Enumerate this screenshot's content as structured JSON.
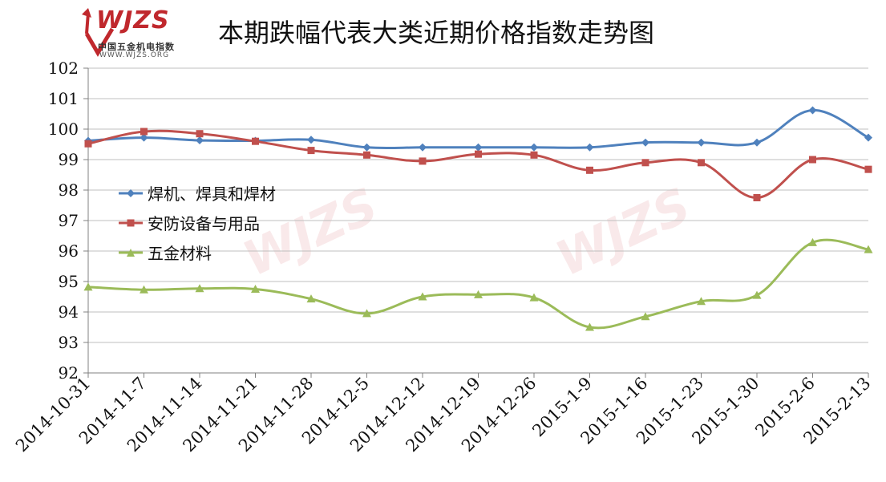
{
  "logo": {
    "name": "WJZS",
    "sub_cn": "中国五金机电指数",
    "sub_url": "WWW.WJZS.ORG"
  },
  "title": "本期跌幅代表大类近期价格指数走势图",
  "chart_data": {
    "type": "line",
    "title": "本期跌幅代表大类近期价格指数走势图",
    "xlabel": "",
    "ylabel": "",
    "ylim": [
      92,
      102
    ],
    "yticks": [
      92,
      93,
      94,
      95,
      96,
      97,
      98,
      99,
      100,
      101,
      102
    ],
    "grid": true,
    "legend_position": "left",
    "categories": [
      "2014-10-31",
      "2014-11-7",
      "2014-11-14",
      "2014-11-21",
      "2014-11-28",
      "2014-12-5",
      "2014-12-12",
      "2014-12-19",
      "2014-12-26",
      "2015-1-9",
      "2015-1-16",
      "2015-1-23",
      "2015-1-30",
      "2015-2-6",
      "2015-2-13"
    ],
    "series": [
      {
        "name": "焊机、焊具和焊材",
        "color": "#4f81bd",
        "marker": "diamond",
        "values": [
          99.62,
          99.72,
          99.63,
          99.62,
          99.65,
          99.4,
          99.4,
          99.4,
          99.4,
          99.4,
          99.56,
          99.56,
          99.56,
          100.62,
          99.72
        ]
      },
      {
        "name": "安防设备与用品",
        "color": "#c0504d",
        "marker": "square",
        "values": [
          99.52,
          99.92,
          99.85,
          99.6,
          99.3,
          99.15,
          98.95,
          99.18,
          99.15,
          98.65,
          98.9,
          98.9,
          97.75,
          99.0,
          98.68
        ]
      },
      {
        "name": "五金材料",
        "color": "#9bbb59",
        "marker": "triangle",
        "values": [
          94.82,
          94.73,
          94.77,
          94.75,
          94.43,
          93.95,
          94.5,
          94.57,
          94.47,
          93.5,
          93.85,
          94.35,
          94.55,
          96.28,
          96.05
        ]
      }
    ]
  }
}
